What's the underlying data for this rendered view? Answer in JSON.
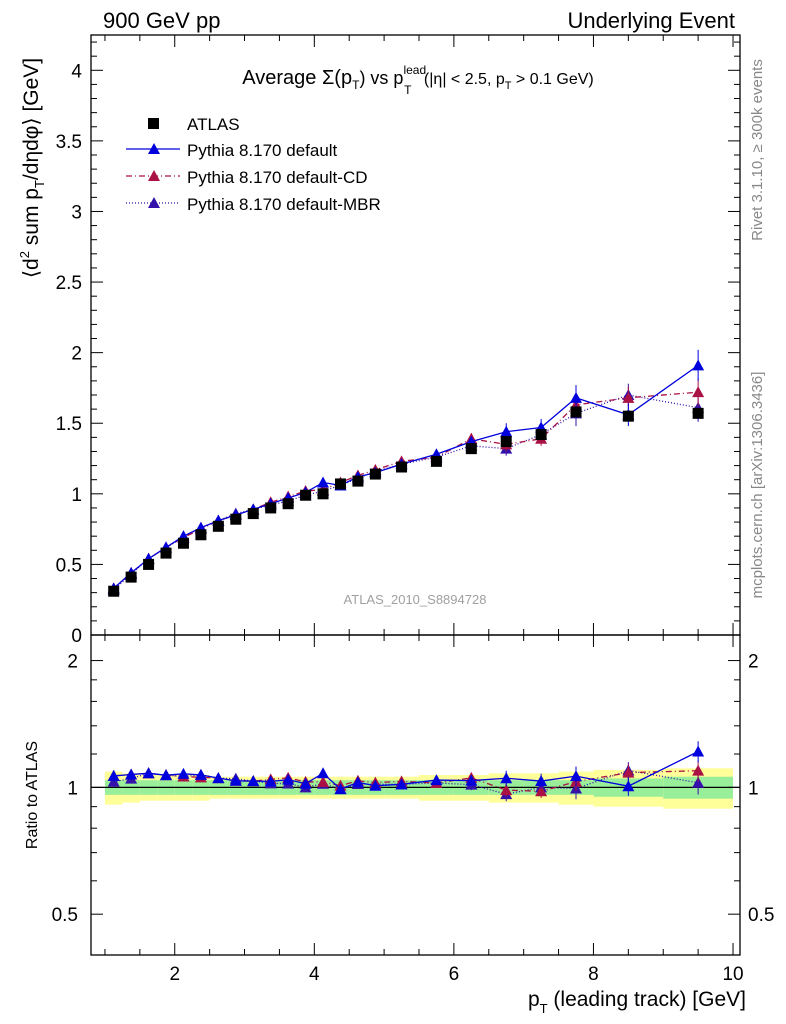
{
  "header": {
    "left": "900 GeV pp",
    "right": "Underlying Event"
  },
  "side_labels": {
    "rivet": "Rivet 3.1.10, ≥ 300k events",
    "mcplots": "mcplots.cern.ch [arXiv:1306.3436]"
  },
  "watermark": "ATLAS_2010_S8894728",
  "title": {
    "prefix": "Average Σ(p",
    "sub_T": "T",
    "middle": ") vs p",
    "sup_lead": "lead",
    "sub_T2": "T",
    "suffix": " (|η| < 2.5, p",
    "sub_T3": "T",
    "tail": " > 0.1 GeV)"
  },
  "ylabel_main": "⟨d² sum p_T/dηdφ⟩ [GeV]",
  "ylabel_ratio": "Ratio to ATLAS",
  "xlabel": "p_T (leading track) [GeV]",
  "colors": {
    "data": "#000000",
    "default": "#0000dd",
    "cd": "#aa1144",
    "mbr": "#3311aa",
    "band_outer": "#ffff99",
    "band_inner": "#99ee99"
  },
  "chart_data": {
    "type": "scatter",
    "x_range": [
      0.8,
      10.1
    ],
    "y_range_main": [
      0,
      4.25
    ],
    "y_range_ratio": [
      0.4,
      2.3
    ],
    "ratio_log_scale": true,
    "x_ticks": [
      2,
      4,
      6,
      8,
      10
    ],
    "y_ticks_main": [
      0,
      0.5,
      1,
      1.5,
      2,
      2.5,
      3,
      3.5,
      4
    ],
    "y_ticks_ratio": [
      0.5,
      1,
      2
    ],
    "legend_position": "top-left",
    "x": [
      1.125,
      1.375,
      1.625,
      1.875,
      2.125,
      2.375,
      2.625,
      2.875,
      3.125,
      3.375,
      3.625,
      3.875,
      4.125,
      4.375,
      4.625,
      4.875,
      5.25,
      5.75,
      6.25,
      6.75,
      7.25,
      7.75,
      8.5,
      9.5
    ],
    "series": [
      {
        "name": "ATLAS",
        "style": "data",
        "values": [
          0.31,
          0.41,
          0.5,
          0.58,
          0.65,
          0.71,
          0.77,
          0.82,
          0.86,
          0.9,
          0.93,
          0.99,
          1.0,
          1.07,
          1.09,
          1.14,
          1.19,
          1.23,
          1.32,
          1.37,
          1.42,
          1.58,
          1.55,
          1.57
        ]
      },
      {
        "name": "Pythia 8.170 default",
        "style": "solid",
        "values": [
          0.33,
          0.44,
          0.54,
          0.62,
          0.7,
          0.76,
          0.81,
          0.85,
          0.89,
          0.93,
          0.97,
          1.01,
          1.08,
          1.06,
          1.12,
          1.15,
          1.21,
          1.28,
          1.37,
          1.44,
          1.47,
          1.68,
          1.56,
          1.91
        ],
        "errors": [
          0.01,
          0.01,
          0.01,
          0.01,
          0.01,
          0.01,
          0.01,
          0.01,
          0.01,
          0.01,
          0.01,
          0.01,
          0.02,
          0.02,
          0.02,
          0.02,
          0.02,
          0.03,
          0.04,
          0.06,
          0.06,
          0.09,
          0.08,
          0.11
        ]
      },
      {
        "name": "Pythia 8.170 default-CD",
        "style": "dashdot",
        "values": [
          0.33,
          0.44,
          0.54,
          0.62,
          0.69,
          0.75,
          0.81,
          0.85,
          0.89,
          0.94,
          0.98,
          1.02,
          1.03,
          1.08,
          1.13,
          1.17,
          1.23,
          1.26,
          1.39,
          1.35,
          1.39,
          1.63,
          1.68,
          1.72
        ],
        "errors": [
          0.01,
          0.01,
          0.01,
          0.01,
          0.01,
          0.01,
          0.01,
          0.01,
          0.01,
          0.01,
          0.01,
          0.01,
          0.02,
          0.02,
          0.02,
          0.02,
          0.02,
          0.03,
          0.04,
          0.05,
          0.05,
          0.08,
          0.08,
          0.1
        ]
      },
      {
        "name": "Pythia 8.170 default-MBR",
        "style": "dotted",
        "values": [
          0.32,
          0.43,
          0.54,
          0.62,
          0.69,
          0.76,
          0.81,
          0.86,
          0.89,
          0.92,
          0.95,
          0.99,
          1.02,
          1.06,
          1.11,
          1.16,
          1.21,
          1.26,
          1.34,
          1.32,
          1.42,
          1.57,
          1.7,
          1.61
        ],
        "errors": [
          0.01,
          0.01,
          0.01,
          0.01,
          0.01,
          0.01,
          0.01,
          0.01,
          0.01,
          0.01,
          0.01,
          0.01,
          0.02,
          0.02,
          0.02,
          0.02,
          0.02,
          0.03,
          0.04,
          0.05,
          0.05,
          0.09,
          0.08,
          0.1
        ]
      }
    ],
    "band_bins": [
      1.0,
      1.25,
      1.5,
      1.75,
      2.0,
      2.25,
      2.5,
      2.75,
      3.0,
      3.25,
      3.5,
      3.75,
      4.0,
      4.25,
      4.5,
      4.75,
      5.0,
      5.5,
      6.0,
      6.5,
      7.0,
      7.5,
      8.0,
      9.0,
      10.0
    ],
    "band_outer": [
      0.09,
      0.08,
      0.07,
      0.07,
      0.07,
      0.07,
      0.06,
      0.06,
      0.06,
      0.06,
      0.06,
      0.06,
      0.06,
      0.06,
      0.06,
      0.06,
      0.06,
      0.07,
      0.07,
      0.08,
      0.08,
      0.09,
      0.1,
      0.11
    ],
    "band_inner": [
      0.04,
      0.04,
      0.04,
      0.04,
      0.04,
      0.04,
      0.04,
      0.04,
      0.04,
      0.04,
      0.04,
      0.04,
      0.04,
      0.04,
      0.04,
      0.04,
      0.04,
      0.04,
      0.04,
      0.04,
      0.04,
      0.04,
      0.05,
      0.06
    ]
  }
}
